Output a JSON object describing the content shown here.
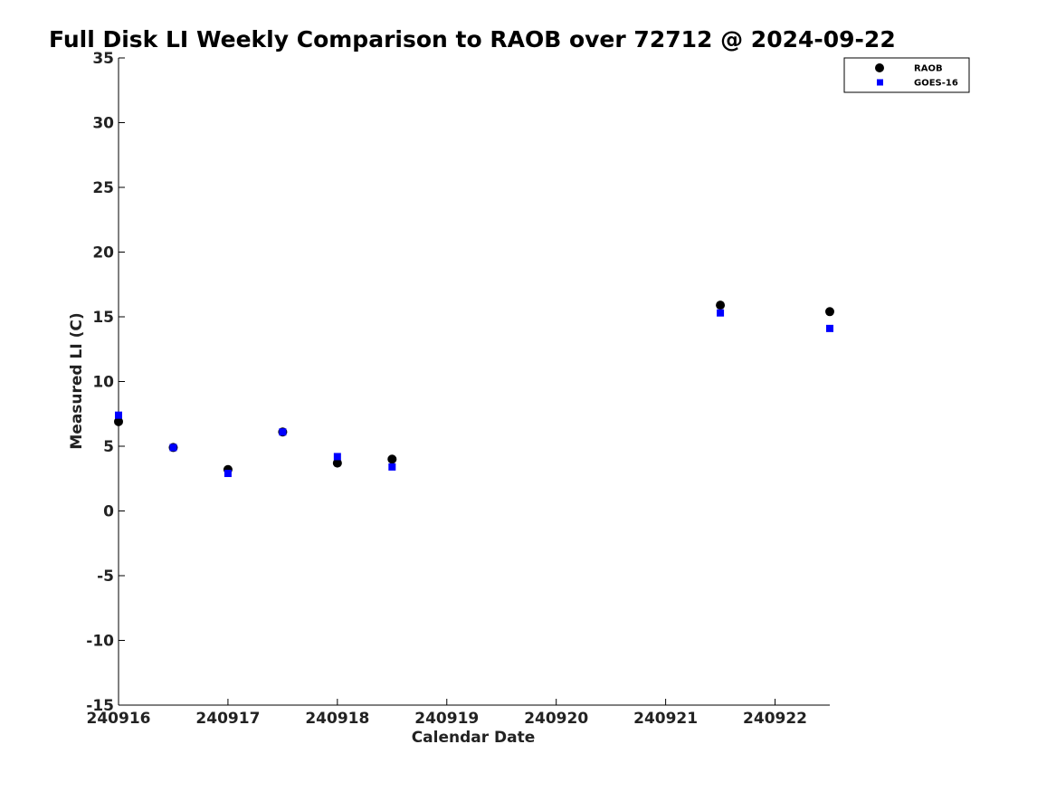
{
  "chart_data": {
    "type": "scatter",
    "title": "Full Disk LI Weekly Comparison to RAOB over 72712 @ 2024-09-22",
    "xlabel": "Calendar Date",
    "ylabel": "Measured LI (C)",
    "xlim": [
      240916,
      240922.5
    ],
    "ylim": [
      -15,
      35
    ],
    "x_ticks": [
      240916,
      240917,
      240918,
      240919,
      240920,
      240921,
      240922
    ],
    "x_tick_labels": [
      "240916",
      "240917",
      "240918",
      "240919",
      "240920",
      "240921",
      "240922"
    ],
    "y_ticks": [
      35,
      30,
      25,
      20,
      15,
      10,
      5,
      0,
      -5,
      -10,
      -15
    ],
    "y_tick_labels": [
      "35",
      "30",
      "25",
      "20",
      "15",
      "10",
      "5",
      "0",
      "-5",
      "-10",
      "-15"
    ],
    "grid": false,
    "legend_position": "top-right",
    "series": [
      {
        "name": "RAOB",
        "marker": "circle",
        "color": "#000000",
        "points": [
          {
            "x": 240916.0,
            "y": 6.9
          },
          {
            "x": 240916.5,
            "y": 4.9
          },
          {
            "x": 240917.0,
            "y": 3.2
          },
          {
            "x": 240917.5,
            "y": 6.1
          },
          {
            "x": 240918.0,
            "y": 3.7
          },
          {
            "x": 240918.5,
            "y": 4.0
          },
          {
            "x": 240921.5,
            "y": 15.9
          },
          {
            "x": 240922.5,
            "y": 15.4
          }
        ]
      },
      {
        "name": "GOES-16",
        "marker": "square",
        "color": "#0000ff",
        "points": [
          {
            "x": 240916.0,
            "y": 7.4
          },
          {
            "x": 240916.5,
            "y": 4.9
          },
          {
            "x": 240917.0,
            "y": 2.9
          },
          {
            "x": 240917.5,
            "y": 6.1
          },
          {
            "x": 240918.0,
            "y": 4.2
          },
          {
            "x": 240918.5,
            "y": 3.4
          },
          {
            "x": 240921.5,
            "y": 15.3
          },
          {
            "x": 240922.5,
            "y": 14.1
          }
        ]
      }
    ]
  }
}
